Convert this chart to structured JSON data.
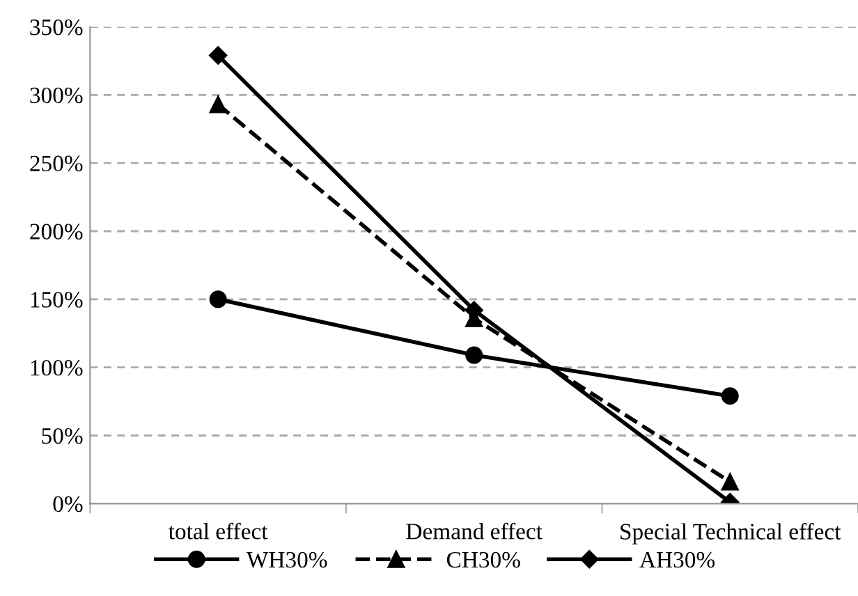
{
  "chart_data": {
    "type": "line",
    "categories": [
      "total effect",
      "Demand effect",
      "Special Technical effect"
    ],
    "series": [
      {
        "name": "WH30%",
        "color": "#000000",
        "marker": "circle",
        "line_style": "solid",
        "values": [
          150,
          109,
          79
        ]
      },
      {
        "name": "CH30%",
        "color": "#000000",
        "marker": "triangle",
        "line_style": "dashed",
        "values": [
          293,
          136,
          16
        ]
      },
      {
        "name": "AH30%",
        "color": "#000000",
        "marker": "diamond",
        "line_style": "solid",
        "values": [
          329,
          142,
          1
        ]
      }
    ],
    "ylim": [
      0,
      350
    ],
    "yticks": [
      {
        "value": 0,
        "label": "0%"
      },
      {
        "value": 50,
        "label": "50%"
      },
      {
        "value": 100,
        "label": "100%"
      },
      {
        "value": 150,
        "label": "150%"
      },
      {
        "value": 200,
        "label": "200%"
      },
      {
        "value": 250,
        "label": "250%"
      },
      {
        "value": 300,
        "label": "300%"
      },
      {
        "value": 350,
        "label": "350%"
      }
    ],
    "grid": "y",
    "legend": "bottom"
  }
}
